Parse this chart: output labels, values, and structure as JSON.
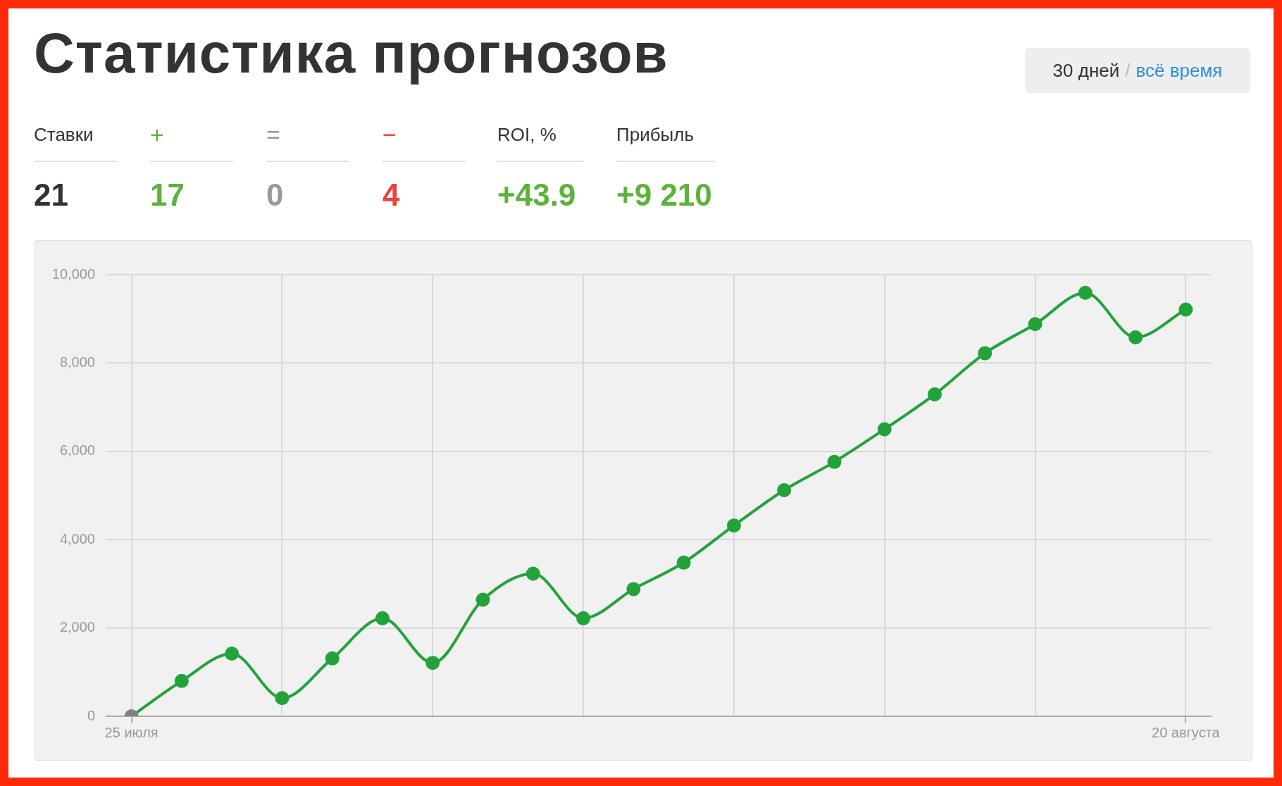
{
  "chart_data": {
    "type": "line",
    "title": "Статистика прогнозов",
    "categories": [
      "25 июля",
      null,
      null,
      null,
      null,
      null,
      null,
      null,
      null,
      null,
      null,
      null,
      null,
      null,
      null,
      null,
      null,
      null,
      null,
      null,
      null,
      "20 августа"
    ],
    "series": [
      {
        "color": "#22a33a",
        "colors": [
          "#808080",
          "#22a33a",
          "#22a33a",
          "#22a33a",
          "#22a33a",
          "#22a33a",
          "#22a33a",
          "#22a33a",
          "#22a33a",
          "#22a33a",
          "#22a33a",
          "#22a33a",
          "#22a33a",
          "#22a33a",
          "#22a33a",
          "#22a33a",
          "#22a33a",
          "#22a33a",
          "#22a33a",
          "#22a33a",
          "#22a33a",
          "#22a33a"
        ],
        "values": [
          0,
          800,
          1420,
          410,
          1310,
          2220,
          1210,
          2640,
          3230,
          2220,
          2880,
          3480,
          4320,
          5120,
          5760,
          6500,
          7290,
          8220,
          8880,
          9590,
          8580,
          9210
        ]
      }
    ],
    "ylim": [
      0,
      10000
    ],
    "yticks": [
      {
        "value": 0,
        "label": "0"
      },
      {
        "value": 2000,
        "label": "2,000"
      },
      {
        "value": 4000,
        "label": "4,000"
      },
      {
        "value": 6000,
        "label": "6,000"
      },
      {
        "value": 8000,
        "label": "8,000"
      },
      {
        "value": 10000,
        "label": "10,000"
      }
    ],
    "grid": true,
    "legend": false,
    "marker": "circle",
    "line_style": "solid",
    "annotations": [
      "30 дней",
      "/",
      "всё время",
      "Ставки",
      "+",
      "=",
      "−",
      "ROI, %",
      "Прибыль",
      "21",
      "17",
      "0",
      "4",
      "+43.9",
      "+9 210"
    ]
  }
}
